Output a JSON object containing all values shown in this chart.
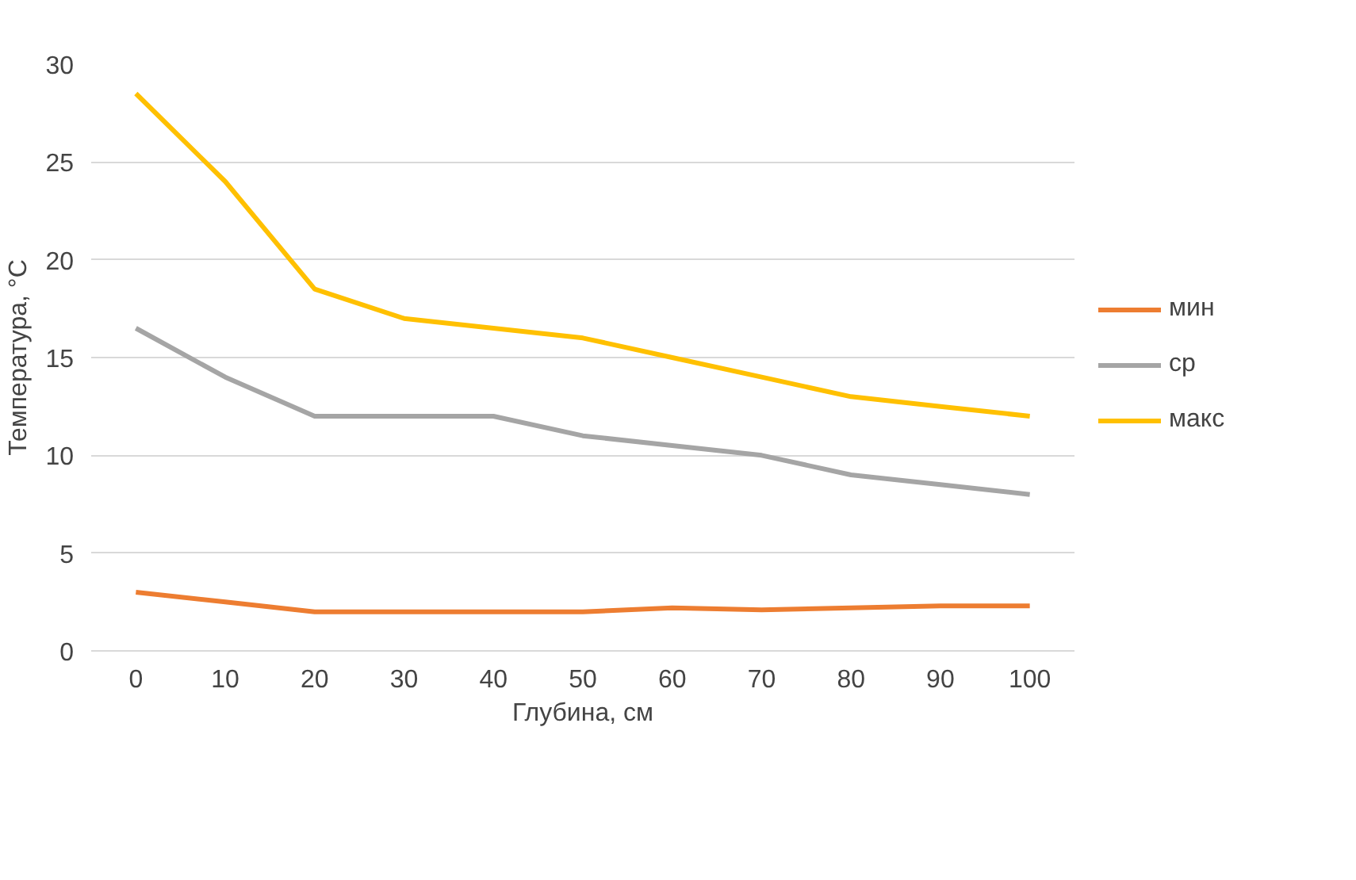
{
  "chart_data": {
    "type": "line",
    "xlabel": "Глубина, см",
    "ylabel": "Температура, °C",
    "categories": [
      "0",
      "10",
      "20",
      "30",
      "40",
      "50",
      "60",
      "70",
      "80",
      "90",
      "100"
    ],
    "series": [
      {
        "name": "мин",
        "color": "#ed7d31",
        "values": [
          3,
          2.5,
          2,
          2,
          2,
          2,
          2.2,
          2.1,
          2.2,
          2.3,
          2.3
        ]
      },
      {
        "name": "ср",
        "color": "#a5a5a5",
        "values": [
          16.5,
          14,
          12,
          12,
          12,
          11,
          10.5,
          10,
          9,
          8.5,
          8
        ]
      },
      {
        "name": "макс",
        "color": "#ffc000",
        "values": [
          28.5,
          24,
          18.5,
          17,
          16.5,
          16,
          15,
          14,
          13,
          12.5,
          12
        ]
      }
    ],
    "ylim": [
      0,
      30
    ],
    "yticks": [
      0,
      5,
      10,
      15,
      20,
      25,
      30
    ],
    "grid": "y",
    "legend": "right"
  }
}
